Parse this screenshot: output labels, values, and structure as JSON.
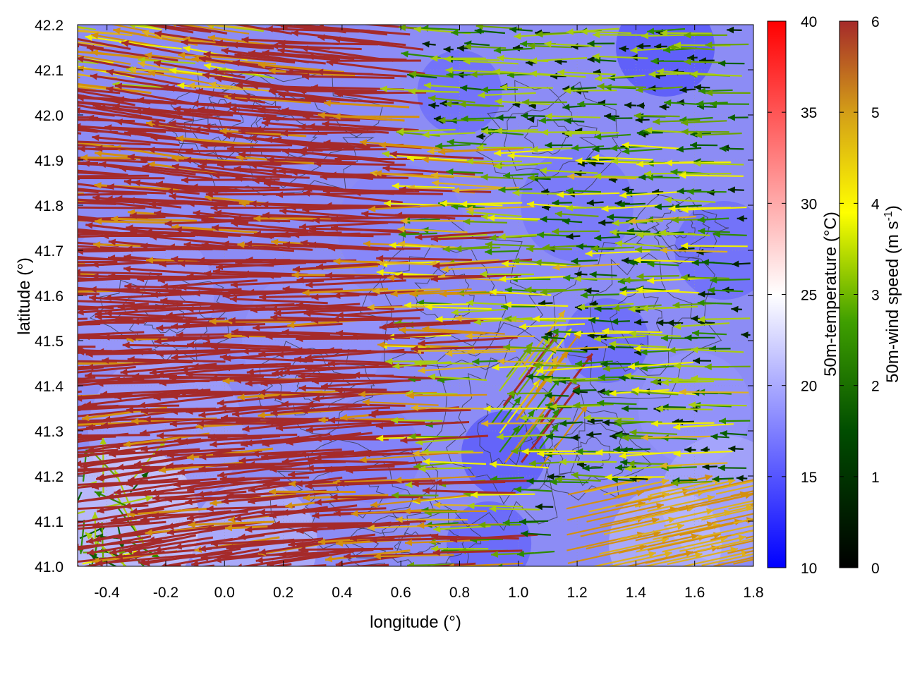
{
  "chart_data": {
    "type": "heatmap",
    "title": "",
    "xlabel": "longitude (°)",
    "ylabel": "latitude (°)",
    "xlim": [
      -0.5,
      1.8
    ],
    "ylim": [
      41.0,
      42.2
    ],
    "xticks": [
      -0.4,
      -0.2,
      0.0,
      0.2,
      0.4,
      0.6,
      0.8,
      1.0,
      1.2,
      1.4,
      1.6,
      1.8
    ],
    "xtick_labels": [
      "-0.4",
      "-0.2",
      "0.0",
      "0.2",
      "0.4",
      "0.6",
      "0.8",
      "1.0",
      "1.2",
      "1.4",
      "1.6",
      "1.8"
    ],
    "yticks": [
      41.0,
      41.1,
      41.2,
      41.3,
      41.4,
      41.5,
      41.6,
      41.7,
      41.8,
      41.9,
      42.0,
      42.1,
      42.2
    ],
    "ytick_labels": [
      "41.0",
      "41.1",
      "41.2",
      "41.3",
      "41.4",
      "41.5",
      "41.6",
      "41.7",
      "41.8",
      "41.9",
      "42.0",
      "42.1",
      "42.2"
    ],
    "grid": true,
    "layers": [
      {
        "kind": "heatmap",
        "variable": "50m-temperature",
        "description": "mostly 14-18 °C over the domain, warmer (22-26 °C) near the south-west corner"
      },
      {
        "kind": "contour",
        "variable": "terrain",
        "color": "#333333"
      },
      {
        "kind": "vector",
        "variable": "50m-wind",
        "description": "strong westward flow (>=6 m/s) over the western half, weaker variable winds in the east, north-eastward flow in the south-east corner"
      }
    ],
    "colorbars": [
      {
        "label_main": "50m-temperature (°C)",
        "range": [
          10,
          40
        ],
        "ticks": [
          10,
          15,
          20,
          25,
          30,
          35,
          40
        ],
        "tick_labels": [
          "10",
          "15",
          "20",
          "25",
          "30",
          "35",
          "40"
        ],
        "colors": [
          "#0000ff",
          "#ffffff",
          "#ff0000"
        ]
      },
      {
        "label_main": "50m-wind speed (m s",
        "label_sup": "-1",
        "label_end": ")",
        "range": [
          0,
          6
        ],
        "ticks": [
          0,
          1,
          2,
          3,
          4,
          5,
          6
        ],
        "tick_labels": [
          "0",
          "1",
          "2",
          "3",
          "4",
          "5",
          "6"
        ],
        "colors": [
          "#000000",
          "#006400",
          "#7fbf00",
          "#ffff00",
          "#d4a017",
          "#a52a2a"
        ]
      }
    ]
  }
}
